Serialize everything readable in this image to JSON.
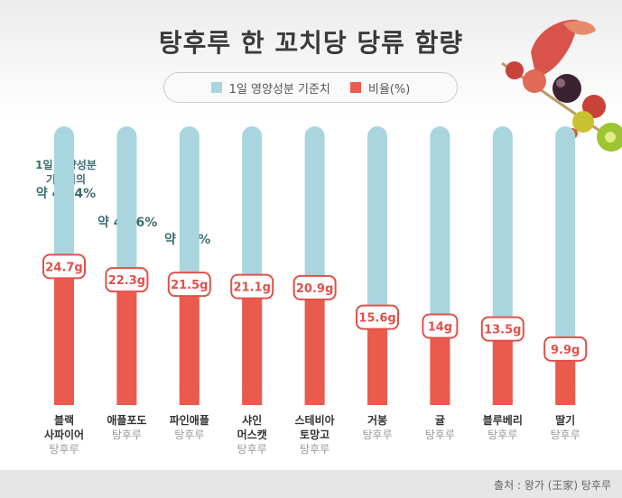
{
  "title": "탕후루 한 꼬치당 당류 함량",
  "legend": {
    "series1": "1일 영양성분 기준치",
    "series2": "비율(%)"
  },
  "colors": {
    "reference": "#a9d5df",
    "value": "#ea5a4d",
    "label_border": "#e0514a",
    "label_text": "#e0514a",
    "note_text": "#3e6d70"
  },
  "annotation": {
    "line1": "1일 영양성분",
    "line2": "기준치의",
    "line3": "약 49.4%"
  },
  "percents": [
    "약 44.6%",
    "약 43%"
  ],
  "source": "출처 : 왕가 (王家) 탕후루",
  "chart_data": {
    "type": "bar",
    "ylim": [
      0,
      50
    ],
    "categories": [
      [
        "블랙",
        "사파이어",
        "탕후루"
      ],
      [
        "애플포도",
        "탕후루"
      ],
      [
        "파인애플",
        "탕후루"
      ],
      [
        "샤인",
        "머스캣",
        "탕후루"
      ],
      [
        "스테비아",
        "토망고",
        "탕후루"
      ],
      [
        "거봉",
        "탕후루"
      ],
      [
        "귤",
        "탕후루"
      ],
      [
        "블루베리",
        "탕후루"
      ],
      [
        "딸기",
        "탕후루"
      ]
    ],
    "series": [
      {
        "name": "1일 영양성분 기준치",
        "values": [
          50,
          50,
          50,
          50,
          50,
          50,
          50,
          50,
          50
        ]
      },
      {
        "name": "비율(%)",
        "values": [
          24.7,
          22.3,
          21.5,
          21.1,
          20.9,
          15.6,
          14,
          13.5,
          9.9
        ]
      }
    ],
    "value_labels": [
      "24.7g",
      "22.3g",
      "21.5g",
      "21.1g",
      "20.9g",
      "15.6g",
      "14g",
      "13.5g",
      "9.9g"
    ]
  }
}
